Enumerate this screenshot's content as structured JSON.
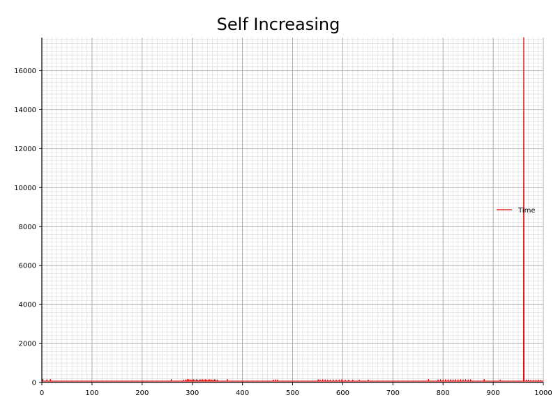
{
  "chart_data": {
    "type": "line",
    "title": "Self Increasing",
    "xlabel": "",
    "ylabel": "",
    "xlim": [
      0,
      1000
    ],
    "ylim": [
      0,
      17700
    ],
    "x_ticks": [
      0,
      100,
      200,
      300,
      400,
      500,
      600,
      700,
      800,
      900,
      1000
    ],
    "y_ticks": [
      0,
      2000,
      4000,
      6000,
      8000,
      10000,
      12000,
      14000,
      16000
    ],
    "grid": {
      "major": true,
      "minor": true
    },
    "legend_position": "right",
    "line_color": "#e00000",
    "series": [
      {
        "name": "Time",
        "baseline": 70,
        "spikes": [
          [
            2,
            170
          ],
          [
            10,
            150
          ],
          [
            17,
            170
          ],
          [
            258,
            160
          ],
          [
            283,
            130
          ],
          [
            287,
            140
          ],
          [
            290,
            160
          ],
          [
            293,
            150
          ],
          [
            296,
            140
          ],
          [
            299,
            130
          ],
          [
            302,
            160
          ],
          [
            305,
            140
          ],
          [
            308,
            150
          ],
          [
            311,
            130
          ],
          [
            314,
            150
          ],
          [
            317,
            140
          ],
          [
            320,
            160
          ],
          [
            323,
            140
          ],
          [
            326,
            150
          ],
          [
            329,
            130
          ],
          [
            332,
            140
          ],
          [
            335,
            150
          ],
          [
            338,
            140
          ],
          [
            341,
            130
          ],
          [
            344,
            150
          ],
          [
            347,
            140
          ],
          [
            350,
            130
          ],
          [
            370,
            170
          ],
          [
            462,
            130
          ],
          [
            466,
            140
          ],
          [
            470,
            130
          ],
          [
            551,
            140
          ],
          [
            555,
            130
          ],
          [
            560,
            150
          ],
          [
            565,
            140
          ],
          [
            570,
            130
          ],
          [
            575,
            130
          ],
          [
            581,
            140
          ],
          [
            587,
            130
          ],
          [
            593,
            130
          ],
          [
            598,
            150
          ],
          [
            605,
            130
          ],
          [
            612,
            130
          ],
          [
            620,
            130
          ],
          [
            633,
            130
          ],
          [
            651,
            130
          ],
          [
            771,
            160
          ],
          [
            790,
            140
          ],
          [
            795,
            150
          ],
          [
            800,
            140
          ],
          [
            805,
            150
          ],
          [
            810,
            140
          ],
          [
            815,
            150
          ],
          [
            820,
            140
          ],
          [
            825,
            150
          ],
          [
            830,
            140
          ],
          [
            835,
            150
          ],
          [
            840,
            140
          ],
          [
            845,
            150
          ],
          [
            850,
            140
          ],
          [
            855,
            150
          ],
          [
            882,
            170
          ],
          [
            914,
            130
          ],
          [
            961,
            17700
          ],
          [
            966,
            130
          ],
          [
            970,
            120
          ],
          [
            975,
            110
          ],
          [
            980,
            110
          ],
          [
            985,
            110
          ],
          [
            990,
            130
          ],
          [
            995,
            120
          ]
        ]
      }
    ]
  }
}
